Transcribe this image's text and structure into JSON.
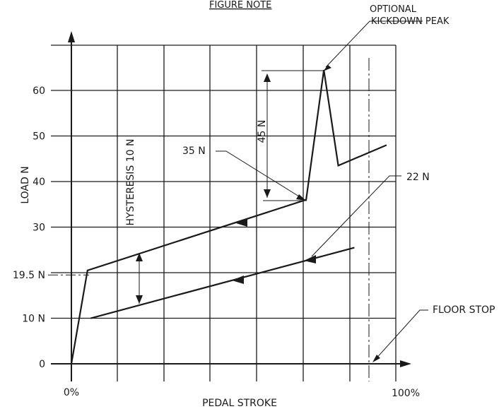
{
  "chart_data": {
    "type": "line",
    "title": "FIGURE NOTE",
    "xlabel": "PEDAL STROKE",
    "ylabel": "LOAD N",
    "x_tick_labels": [
      "0%",
      "100%"
    ],
    "y_ticks": [
      0,
      10,
      19.5,
      30,
      40,
      50,
      60
    ],
    "y_tick_labels": [
      "0",
      "10 N",
      "19.5 N",
      "30",
      "40",
      "50",
      "60"
    ],
    "xlim": [
      0,
      100
    ],
    "ylim": [
      0,
      69
    ],
    "grid": true,
    "series": [
      {
        "role": "apply",
        "points": [
          [
            0,
            0
          ],
          [
            5,
            20.5
          ],
          [
            73,
            36
          ],
          [
            78.5,
            64.5
          ],
          [
            83,
            43.5
          ],
          [
            98,
            48
          ]
        ]
      },
      {
        "role": "release",
        "points": [
          [
            6,
            10
          ],
          [
            88,
            25.5
          ]
        ]
      }
    ],
    "annotations": {
      "optional_peak": "OPTIONAL",
      "kickdown_peak": "KICKDOWN PEAK",
      "peak_force": "45 N",
      "break_force": "35 N",
      "release_force": "22 N",
      "hysteresis": "HYSTERESIS 10 N",
      "floor_stop": "FLOOR STOP"
    }
  }
}
